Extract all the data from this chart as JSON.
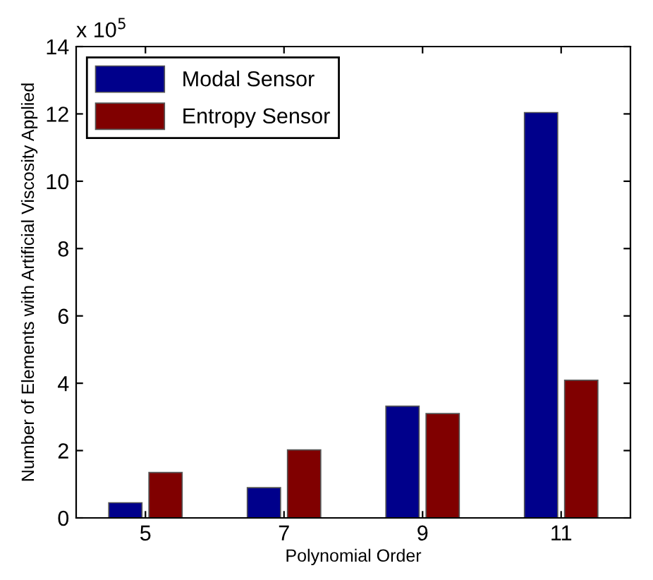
{
  "chart_data": {
    "type": "bar",
    "xlabel": "Polynomial Order",
    "ylabel": "Number of Elements with Artificial Viscosity Applied",
    "categories": [
      "5",
      "7",
      "9",
      "11"
    ],
    "series": [
      {
        "name": "Modal Sensor",
        "color": "#00008b",
        "values": [
          0.45,
          0.9,
          3.32,
          12.04
        ]
      },
      {
        "name": "Entropy Sensor",
        "color": "#800000",
        "values": [
          1.35,
          2.02,
          3.1,
          4.09
        ]
      }
    ],
    "ylim": [
      0,
      14
    ],
    "yticks": [
      0,
      2,
      4,
      6,
      8,
      10,
      12,
      14
    ],
    "annotations": [
      "x 10$^{5}$"
    ],
    "legend": "top left",
    "grid": false
  }
}
